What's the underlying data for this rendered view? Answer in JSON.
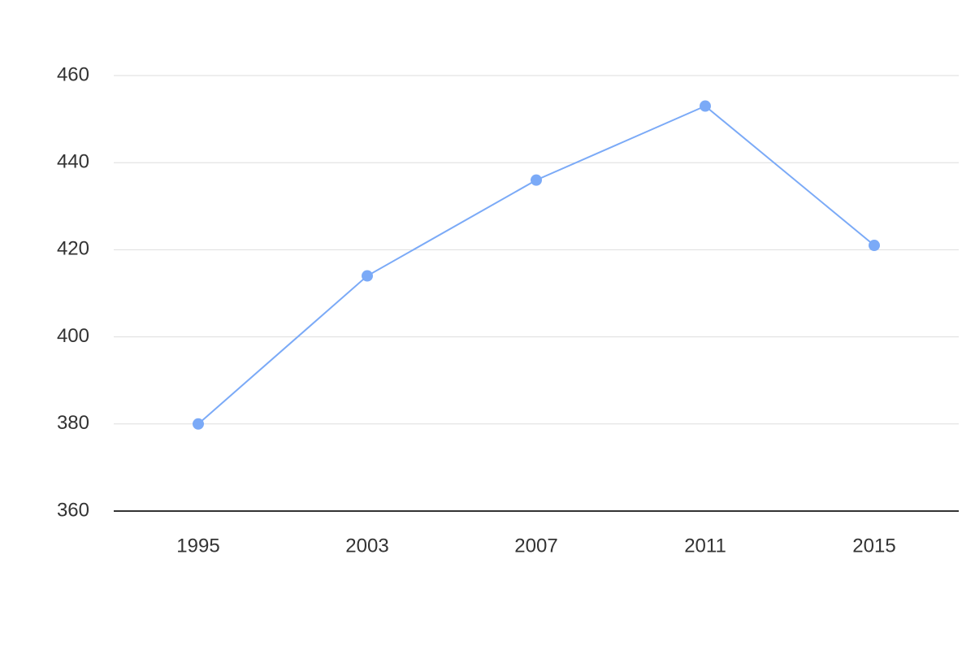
{
  "chart_data": {
    "type": "line",
    "categories": [
      "1995",
      "2003",
      "2007",
      "2011",
      "2015"
    ],
    "values": [
      380,
      414,
      436,
      453,
      421
    ],
    "color": "#7baaf7",
    "ylim": [
      360,
      460
    ],
    "yticks": [
      360,
      380,
      400,
      420,
      440,
      460
    ],
    "grid": true
  }
}
